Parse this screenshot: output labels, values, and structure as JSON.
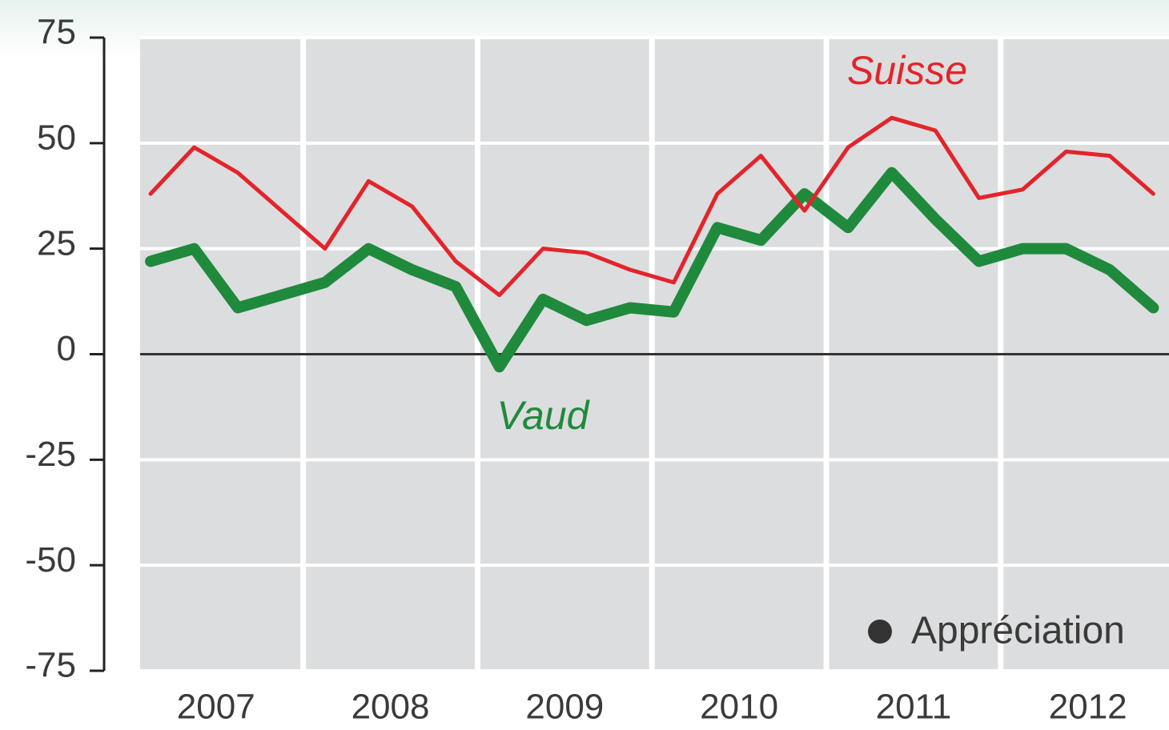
{
  "chart_data": {
    "type": "line",
    "x": [
      2007.0,
      2007.25,
      2007.5,
      2007.75,
      2008.0,
      2008.25,
      2008.5,
      2008.75,
      2009.0,
      2009.25,
      2009.5,
      2009.75,
      2010.0,
      2010.25,
      2010.5,
      2010.75,
      2011.0,
      2011.25,
      2011.5,
      2011.75,
      2012.0,
      2012.25,
      2012.5,
      2012.75
    ],
    "series": [
      {
        "name": "Suisse",
        "color": "#e3242b",
        "values": [
          38,
          49,
          43,
          34,
          25,
          41,
          35,
          22,
          14,
          25,
          24,
          20,
          17,
          38,
          47,
          34,
          49,
          56,
          53,
          37,
          39,
          48,
          47,
          38
        ]
      },
      {
        "name": "Vaud",
        "color": "#1f8a3c",
        "values": [
          22,
          25,
          11,
          14,
          17,
          25,
          20,
          16,
          -3,
          13,
          8,
          11,
          10,
          30,
          27,
          38,
          30,
          43,
          32,
          22,
          25,
          25,
          20,
          11
        ]
      }
    ],
    "xlim": [
      2006.94,
      2012.84
    ],
    "xticks": [
      {
        "value": 2007.375,
        "label": "2007"
      },
      {
        "value": 2008.375,
        "label": "2008"
      },
      {
        "value": 2009.375,
        "label": "2009"
      },
      {
        "value": 2010.375,
        "label": "2010"
      },
      {
        "value": 2011.375,
        "label": "2011"
      },
      {
        "value": 2012.375,
        "label": "2012"
      }
    ],
    "ylim": [
      -75,
      75
    ],
    "yticks": [
      -75,
      -50,
      -25,
      0,
      25,
      50,
      75
    ],
    "grid": true,
    "legend": "Appréciation"
  }
}
